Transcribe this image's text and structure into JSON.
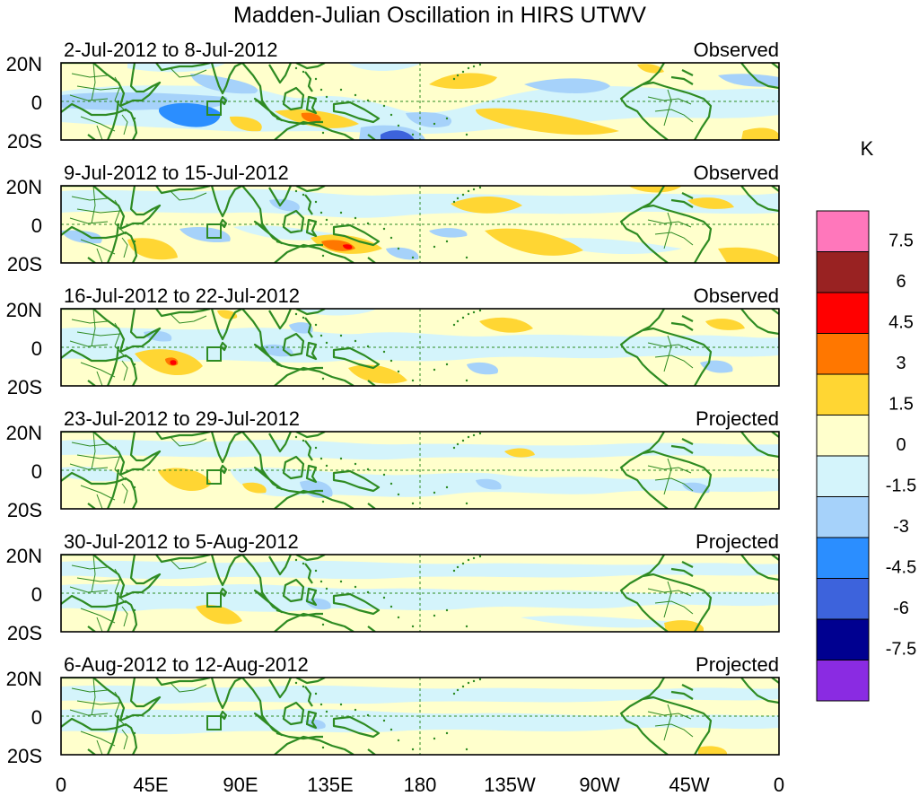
{
  "title": "Madden-Julian Oscillation in HIRS UTWV",
  "unit_label": "K",
  "lat_labels": [
    "20N",
    "0",
    "20S"
  ],
  "lon_labels": [
    "0",
    "45E",
    "90E",
    "135E",
    "180",
    "135W",
    "90W",
    "45W",
    "0"
  ],
  "panels": [
    {
      "date_range": "2-Jul-2012 to 8-Jul-2012",
      "status": "Observed"
    },
    {
      "date_range": "9-Jul-2012 to 15-Jul-2012",
      "status": "Observed"
    },
    {
      "date_range": "16-Jul-2012 to 22-Jul-2012",
      "status": "Observed"
    },
    {
      "date_range": "23-Jul-2012 to 29-Jul-2012",
      "status": "Projected"
    },
    {
      "date_range": "30-Jul-2012 to 5-Aug-2012",
      "status": "Projected"
    },
    {
      "date_range": "6-Aug-2012 to 12-Aug-2012",
      "status": "Projected"
    }
  ],
  "colorbar": {
    "colors": [
      "#ff77bb",
      "#992222",
      "#ff0000",
      "#ff7700",
      "#ffd633",
      "#ffffcc",
      "#d4f4fb",
      "#a6d2fa",
      "#2b8eff",
      "#3d63dc",
      "#000090",
      "#8a2be2"
    ],
    "tick_labels": [
      "7.5",
      "6",
      "4.5",
      "3",
      "1.5",
      "0",
      "-1.5",
      "-3",
      "-4.5",
      "-6",
      "-7.5"
    ]
  },
  "colors": {
    "coastline": "#2e8b22",
    "zero_field": "#ffffcc",
    "weak_negative": "#d4f4fb",
    "moderate_negative": "#a6d2fa",
    "positive": "#ffd633"
  }
}
